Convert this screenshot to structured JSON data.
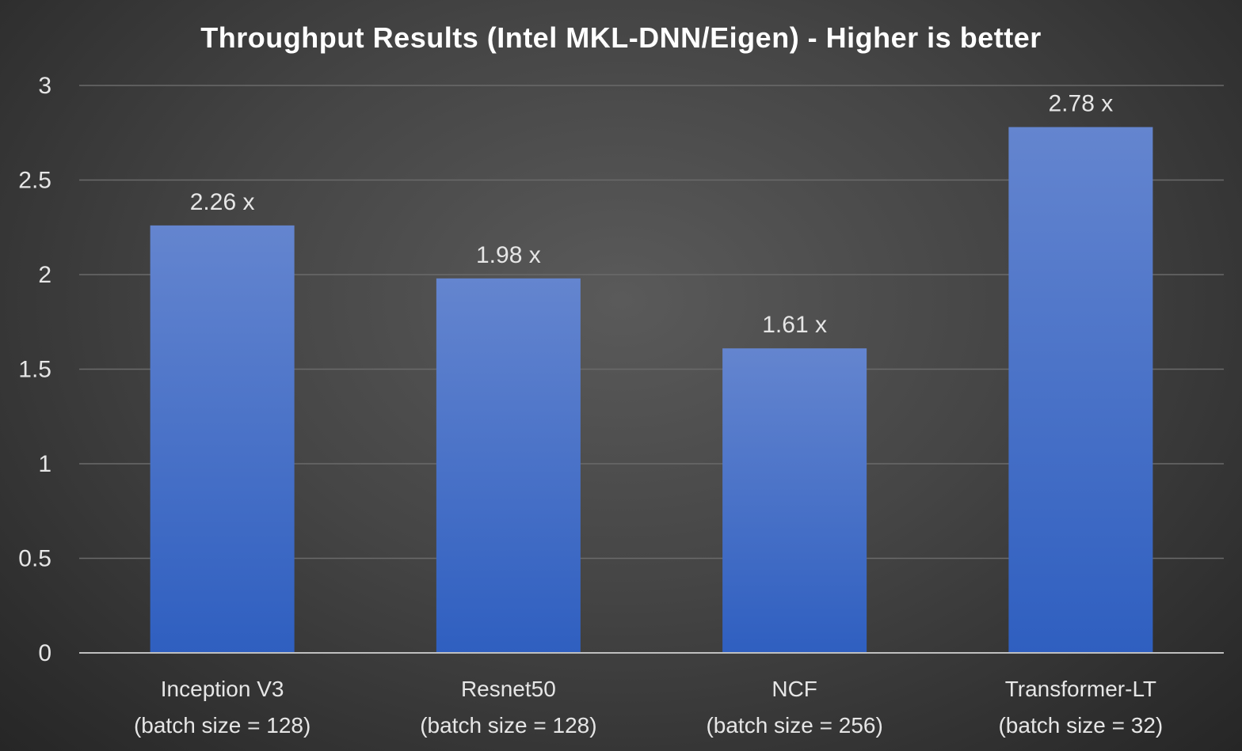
{
  "chart_data": {
    "type": "bar",
    "title": "Throughput Results (Intel MKL-DNN/Eigen) - Higher is better",
    "categories": [
      [
        "Inception V3",
        "(batch size = 128)"
      ],
      [
        "Resnet50",
        "(batch size = 128)"
      ],
      [
        "NCF",
        "(batch size = 256)"
      ],
      [
        "Transformer-LT",
        "(batch size = 32)"
      ]
    ],
    "values": [
      2.26,
      1.98,
      1.61,
      2.78
    ],
    "data_labels": [
      "2.26 x",
      "1.98 x",
      "1.61 x",
      "2.78 x"
    ],
    "yticks": [
      0,
      0.5,
      1,
      1.5,
      2,
      2.5,
      3
    ],
    "ytick_labels": [
      "0",
      "0.5",
      "1",
      "1.5",
      "2",
      "2.5",
      "3"
    ],
    "ylim": [
      0,
      3
    ],
    "xlabel": "",
    "ylabel": "",
    "grid": true,
    "legend": "none",
    "colors": {
      "bar_top": "#6485cf",
      "bar_bottom": "#2f5fc0",
      "background": "#454545",
      "text": "#e6e6e6"
    }
  }
}
